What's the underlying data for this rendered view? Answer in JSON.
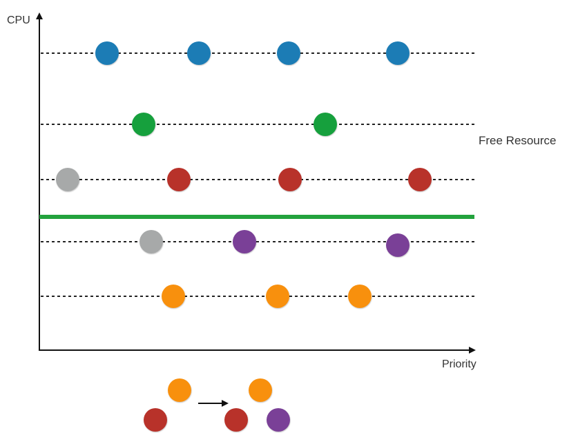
{
  "axes": {
    "y_label": "CPU",
    "x_label": "Priority"
  },
  "threshold_label": "Free Resource",
  "colors": {
    "blue": "#1a7bb5",
    "green": "#16a03c",
    "gray": "#a7a9a9",
    "red": "#b8302a",
    "purple": "#7a3f97",
    "orange": "#f8900f",
    "threshold": "#23a23d",
    "dashed": "#222222",
    "axis": "#111111"
  },
  "rows": [
    {
      "id": "row-1",
      "dots": [
        "blue",
        "blue",
        "blue",
        "blue"
      ]
    },
    {
      "id": "row-2",
      "dots": [
        "green",
        "green"
      ]
    },
    {
      "id": "row-3",
      "dots": [
        "gray",
        "red",
        "red",
        "red"
      ]
    },
    {
      "id": "row-4",
      "dots": [
        "gray",
        "purple",
        "purple"
      ]
    },
    {
      "id": "row-5",
      "dots": [
        "orange",
        "orange",
        "orange"
      ]
    }
  ],
  "legend_example": {
    "before": [
      "orange",
      "red"
    ],
    "after": [
      "orange",
      "red",
      "purple"
    ]
  }
}
